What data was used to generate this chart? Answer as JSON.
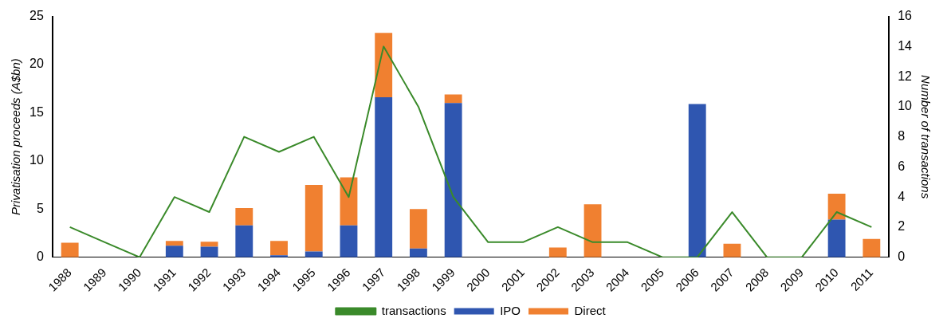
{
  "chart_data": {
    "type": "bar",
    "stacked": true,
    "categories": [
      "1988",
      "1989",
      "1990",
      "1991",
      "1992",
      "1993",
      "1994",
      "1995",
      "1996",
      "1997",
      "1998",
      "1999",
      "2000",
      "2001",
      "2002",
      "2003",
      "2004",
      "2005",
      "2006",
      "2007",
      "2008",
      "2009",
      "2010",
      "2011"
    ],
    "series": [
      {
        "name": "IPO",
        "color": "#2f56b0",
        "values": [
          0,
          0,
          0,
          1.2,
          1.1,
          3.3,
          0.2,
          0.6,
          3.3,
          16.6,
          0.9,
          16.0,
          0,
          0,
          0,
          0,
          0,
          0,
          15.9,
          0,
          0,
          0,
          3.9,
          0
        ]
      },
      {
        "name": "Direct",
        "color": "#f08030",
        "values": [
          1.5,
          0,
          0,
          0.5,
          0.5,
          1.8,
          1.5,
          6.9,
          5.0,
          6.7,
          4.1,
          0.9,
          0,
          0,
          1.0,
          5.5,
          0,
          0,
          0,
          1.4,
          0,
          0,
          2.7,
          1.9
        ]
      },
      {
        "name": "transactions",
        "type": "line",
        "axis": "y2",
        "color": "#3a8a2a",
        "values": [
          2,
          1,
          0,
          4,
          3,
          8,
          7,
          8,
          4,
          14,
          10,
          4,
          1,
          1,
          2,
          1,
          1,
          0,
          0,
          3,
          0,
          0,
          3,
          2
        ]
      }
    ],
    "ylabel": "Privatisation proceeds (A$bn)",
    "y2label": "Number of transactions",
    "ylim": [
      0,
      25
    ],
    "yticks": [
      0,
      5,
      10,
      15,
      20,
      25
    ],
    "y2lim": [
      0,
      16
    ],
    "y2ticks": [
      0,
      2,
      4,
      6,
      8,
      10,
      12,
      14,
      16
    ],
    "grid": false,
    "legend": "bottom",
    "marker": "none"
  }
}
